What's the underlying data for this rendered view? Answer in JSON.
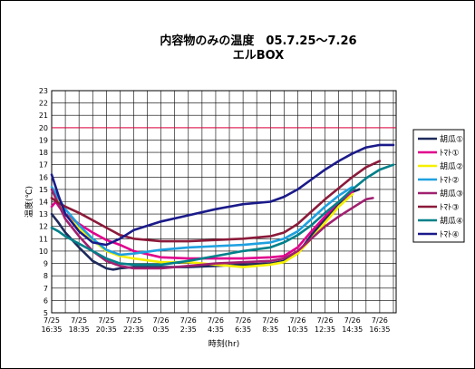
{
  "chart_data": {
    "type": "line",
    "title_line1": "内容物のみの温度　05.7.25～7.26",
    "title_line2": "エルBOX",
    "xlabel": "時刻(hr)",
    "ylabel": "温度(℃)",
    "ylim": [
      5,
      23
    ],
    "yticks": [
      5,
      6,
      7,
      8,
      9,
      10,
      11,
      12,
      13,
      14,
      15,
      16,
      17,
      18,
      19,
      20,
      21,
      22,
      23
    ],
    "x_tick_labels": [
      [
        "7/25",
        "16:35"
      ],
      [
        "7/25",
        "18:35"
      ],
      [
        "7/25",
        "20:35"
      ],
      [
        "7/25",
        "22:35"
      ],
      [
        "7/26",
        "0:35"
      ],
      [
        "7/26",
        "2:35"
      ],
      [
        "7/26",
        "4:35"
      ],
      [
        "7/26",
        "6:35"
      ],
      [
        "7/26",
        "8:35"
      ],
      [
        "7/26",
        "10:35"
      ],
      [
        "7/26",
        "12:35"
      ],
      [
        "7/26",
        "14:35"
      ],
      [
        "7/26",
        "16:35"
      ]
    ],
    "x_hours": [
      0,
      2,
      4,
      6,
      8,
      10,
      12,
      14,
      16,
      18,
      20,
      22,
      24
    ],
    "reference_line": 20,
    "grid": true,
    "legend_position": "right",
    "series": [
      {
        "name": "胡瓜①",
        "color": "#1f2a5c",
        "x": [
          0,
          0.5,
          1,
          2,
          3,
          4,
          4.5,
          5,
          6,
          8,
          10,
          12,
          14,
          16,
          17,
          18,
          19,
          20,
          21,
          22,
          22.5
        ],
        "y": [
          13.0,
          12.3,
          11.5,
          10.3,
          9.2,
          8.6,
          8.5,
          8.6,
          8.7,
          8.7,
          8.7,
          8.8,
          8.9,
          9.0,
          9.2,
          9.8,
          11.3,
          12.6,
          13.8,
          14.8,
          15.0
        ]
      },
      {
        "name": "ﾄﾏﾄ①",
        "color": "#e0008c",
        "x": [
          0,
          0.3,
          0.6,
          1,
          2,
          3,
          4,
          5,
          6,
          8,
          10,
          12,
          14,
          16,
          17,
          18,
          19,
          20,
          21,
          22
        ],
        "y": [
          13.6,
          14.0,
          13.5,
          13.0,
          12.2,
          11.5,
          10.9,
          10.5,
          10.0,
          9.5,
          9.4,
          9.4,
          9.4,
          9.5,
          9.6,
          10.3,
          11.6,
          12.8,
          14.0,
          14.8
        ]
      },
      {
        "name": "胡瓜②",
        "color": "#f5f000",
        "x": [
          0,
          0.5,
          1,
          2,
          3,
          4,
          5,
          6,
          8,
          10,
          12,
          14,
          16,
          17,
          18,
          19,
          20,
          21,
          22
        ],
        "y": [
          15.0,
          14.0,
          13.0,
          11.8,
          10.9,
          10.0,
          9.6,
          9.4,
          9.1,
          9.1,
          8.9,
          8.7,
          8.9,
          9.1,
          9.8,
          11.0,
          12.3,
          13.6,
          14.6
        ]
      },
      {
        "name": "ﾄﾏﾄ②",
        "color": "#1ea0e0",
        "x": [
          0,
          0.5,
          1,
          2,
          3,
          4,
          5,
          6,
          8,
          10,
          12,
          14,
          16,
          17,
          18,
          19,
          20,
          21,
          22
        ],
        "y": [
          15.2,
          14.3,
          13.4,
          12.1,
          11.0,
          10.1,
          9.7,
          9.8,
          10.1,
          10.3,
          10.4,
          10.5,
          10.7,
          11.0,
          11.6,
          12.6,
          13.6,
          14.5,
          15.2
        ]
      },
      {
        "name": "胡瓜③",
        "color": "#a02070",
        "x": [
          0,
          0.5,
          1,
          2,
          3,
          4,
          5,
          6,
          8,
          10,
          12,
          14,
          16,
          17,
          18,
          19,
          20,
          21,
          22,
          23,
          23.5
        ],
        "y": [
          15.0,
          13.8,
          12.6,
          11.2,
          10.0,
          9.2,
          8.8,
          8.6,
          8.6,
          8.8,
          9.0,
          9.1,
          9.2,
          9.4,
          10.0,
          11.0,
          12.0,
          12.8,
          13.5,
          14.2,
          14.3
        ]
      },
      {
        "name": "ﾄﾏﾄ③",
        "color": "#8b1a3a",
        "x": [
          0,
          0.5,
          1,
          2,
          3,
          4,
          5,
          6,
          8,
          10,
          12,
          14,
          16,
          17,
          18,
          19,
          20,
          21,
          22,
          23,
          24
        ],
        "y": [
          14.3,
          13.9,
          13.6,
          13.1,
          12.5,
          11.9,
          11.3,
          11.0,
          10.8,
          10.8,
          10.9,
          11.0,
          11.2,
          11.5,
          12.2,
          13.2,
          14.2,
          15.1,
          16.0,
          16.8,
          17.3
        ]
      },
      {
        "name": "胡瓜④",
        "color": "#00808a",
        "x": [
          0,
          0.5,
          1,
          2,
          3,
          4,
          5,
          6,
          8,
          10,
          12,
          14,
          16,
          17,
          18,
          19,
          20,
          21,
          22,
          23,
          24,
          25
        ],
        "y": [
          11.9,
          11.6,
          11.2,
          10.6,
          10.0,
          9.4,
          9.0,
          8.9,
          8.9,
          9.2,
          9.6,
          10.0,
          10.3,
          10.7,
          11.3,
          12.1,
          13.1,
          14.0,
          15.0,
          15.9,
          16.6,
          17.0
        ]
      },
      {
        "name": "ﾄﾏﾄ④",
        "color": "#1a1a8a",
        "x": [
          0,
          0.5,
          1,
          2,
          3,
          4,
          5,
          6,
          8,
          10,
          12,
          14,
          16,
          17,
          18,
          19,
          20,
          21,
          22,
          23,
          24,
          25
        ],
        "y": [
          16.2,
          14.5,
          13.0,
          11.6,
          10.7,
          10.5,
          11.0,
          11.7,
          12.4,
          12.9,
          13.4,
          13.8,
          14.0,
          14.4,
          15.0,
          15.8,
          16.6,
          17.3,
          17.9,
          18.4,
          18.6,
          18.6
        ]
      }
    ]
  }
}
